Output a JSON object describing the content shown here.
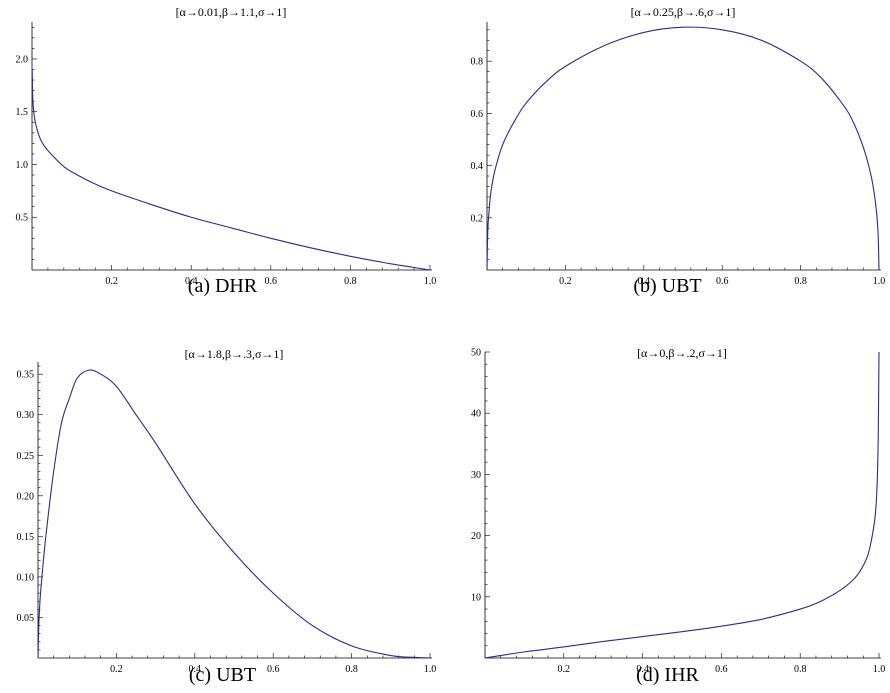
{
  "panels": [
    {
      "subtitle": "[α→0.01,β→1.1,σ→1]",
      "caption": "(a) DHR",
      "x_ticks": [
        0.2,
        0.4,
        0.6,
        0.8,
        1.0
      ],
      "x_tick_labels": [
        "0.2",
        "0.4",
        "0.6",
        "0.8",
        "1.0"
      ],
      "y_ticks": [
        0.5,
        1.0,
        1.5,
        2.0
      ],
      "y_tick_labels": [
        "0.5",
        "1.0",
        "1.5",
        "2.0"
      ]
    },
    {
      "subtitle": "[α→0.25,β→.6,σ→1]",
      "caption": "(b) UBT",
      "x_ticks": [
        0.2,
        0.4,
        0.6,
        0.8,
        1.0
      ],
      "x_tick_labels": [
        "0.2",
        "0.4",
        "0.6",
        "0.8",
        "1.0"
      ],
      "y_ticks": [
        0.2,
        0.4,
        0.6,
        0.8
      ],
      "y_tick_labels": [
        "0.2",
        "0.4",
        "0.6",
        "0.8"
      ]
    },
    {
      "subtitle": "[α→1.8,β→.3,σ→1]",
      "caption": "(c) UBT",
      "x_ticks": [
        0.2,
        0.4,
        0.6,
        0.8,
        1.0
      ],
      "x_tick_labels": [
        "0.2",
        "0.4",
        "0.6",
        "0.8",
        "1.0"
      ],
      "y_ticks": [
        0.05,
        0.1,
        0.15,
        0.2,
        0.25,
        0.3,
        0.35
      ],
      "y_tick_labels": [
        "0.05",
        "0.10",
        "0.15",
        "0.20",
        "0.25",
        "0.30",
        "0.35"
      ]
    },
    {
      "subtitle": "[α→0,β→.2,σ→1]",
      "caption": "(d) IHR",
      "x_ticks": [
        0.2,
        0.4,
        0.6,
        0.8,
        1.0
      ],
      "x_tick_labels": [
        "0.2",
        "0.4",
        "0.6",
        "0.8",
        "1.0"
      ],
      "y_ticks": [
        10,
        20,
        30,
        40,
        50
      ],
      "y_tick_labels": [
        "10",
        "20",
        "30",
        "40",
        "50"
      ]
    }
  ],
  "chart_data": [
    {
      "type": "line",
      "title": "[α→0.01,β→1.1,σ→1]",
      "xlim": [
        0,
        1
      ],
      "ylim": [
        0,
        2.35
      ],
      "series": [
        {
          "color": "#2b2b8c",
          "x": [
            0.0005,
            0.002,
            0.005,
            0.01,
            0.02,
            0.03,
            0.05,
            0.08,
            0.1,
            0.15,
            0.2,
            0.3,
            0.4,
            0.5,
            0.6,
            0.7,
            0.8,
            0.9,
            0.95,
            1.0
          ],
          "y": [
            1.9,
            1.62,
            1.48,
            1.37,
            1.25,
            1.18,
            1.09,
            0.98,
            0.93,
            0.83,
            0.75,
            0.62,
            0.5,
            0.4,
            0.3,
            0.21,
            0.13,
            0.06,
            0.03,
            0.0
          ]
        }
      ]
    },
    {
      "type": "line",
      "title": "[α→0.25,β→.6,σ→1]",
      "xlim": [
        0,
        1
      ],
      "ylim": [
        0,
        0.95
      ],
      "series": [
        {
          "color": "#2b2b8c",
          "x": [
            0.0,
            0.002,
            0.005,
            0.01,
            0.02,
            0.04,
            0.07,
            0.1,
            0.15,
            0.2,
            0.3,
            0.4,
            0.5,
            0.6,
            0.7,
            0.8,
            0.85,
            0.9,
            0.93,
            0.96,
            0.98,
            0.99,
            0.995,
            0.998,
            1.0
          ],
          "y": [
            0.0,
            0.15,
            0.22,
            0.3,
            0.38,
            0.48,
            0.57,
            0.64,
            0.72,
            0.78,
            0.86,
            0.91,
            0.93,
            0.92,
            0.88,
            0.8,
            0.74,
            0.65,
            0.58,
            0.47,
            0.36,
            0.27,
            0.2,
            0.13,
            0.0
          ]
        }
      ]
    },
    {
      "type": "line",
      "title": "[α→1.8,β→.3,σ→1]",
      "xlim": [
        0,
        1
      ],
      "ylim": [
        0,
        0.365
      ],
      "series": [
        {
          "color": "#2b2b8c",
          "x": [
            0.0,
            0.002,
            0.005,
            0.01,
            0.02,
            0.04,
            0.06,
            0.08,
            0.1,
            0.13,
            0.16,
            0.2,
            0.25,
            0.3,
            0.4,
            0.5,
            0.6,
            0.7,
            0.8,
            0.9,
            0.95,
            1.0
          ],
          "y": [
            0.0,
            0.04,
            0.07,
            0.1,
            0.15,
            0.23,
            0.29,
            0.32,
            0.345,
            0.355,
            0.35,
            0.335,
            0.3,
            0.265,
            0.19,
            0.13,
            0.08,
            0.04,
            0.015,
            0.003,
            0.001,
            0.0
          ]
        }
      ]
    },
    {
      "type": "line",
      "title": "[α→0,β→.2,σ→1]",
      "xlim": [
        0,
        1
      ],
      "ylim": [
        0,
        50
      ],
      "series": [
        {
          "color": "#2b2b8c",
          "x": [
            0.0,
            0.1,
            0.2,
            0.3,
            0.4,
            0.5,
            0.6,
            0.7,
            0.8,
            0.85,
            0.9,
            0.93,
            0.95,
            0.97,
            0.98,
            0.99,
            0.995,
            0.998,
            1.0
          ],
          "y": [
            0.0,
            1.0,
            1.8,
            2.7,
            3.5,
            4.3,
            5.2,
            6.3,
            8.0,
            9.2,
            11.0,
            12.5,
            14.0,
            16.5,
            19.0,
            23.0,
            28.0,
            36.0,
            50.0
          ]
        }
      ]
    }
  ]
}
